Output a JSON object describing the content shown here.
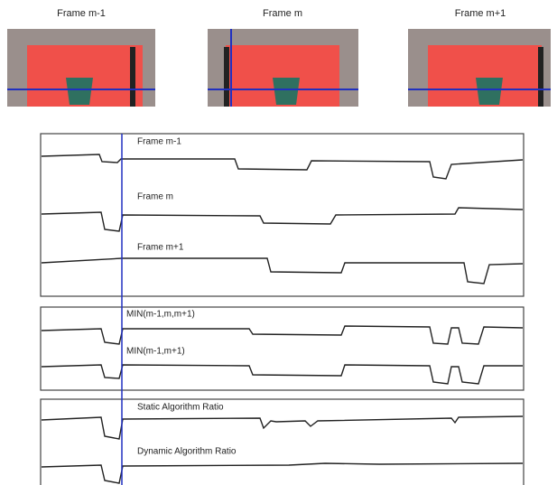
{
  "frames": [
    {
      "label": "Frame m-1"
    },
    {
      "label": "Frame m"
    },
    {
      "label": "Frame m+1"
    }
  ],
  "panels": [
    {
      "traces": [
        {
          "label": "Frame m-1"
        },
        {
          "label": "Frame m"
        },
        {
          "label": "Frame m+1"
        }
      ]
    },
    {
      "traces": [
        {
          "label": "MIN(m-1,m,m+1)"
        },
        {
          "label": "MIN(m-1,m+1)"
        }
      ]
    },
    {
      "traces": [
        {
          "label": "Static Algorithm Ratio"
        },
        {
          "label": "Dynamic Algorithm Ratio"
        }
      ]
    }
  ]
}
